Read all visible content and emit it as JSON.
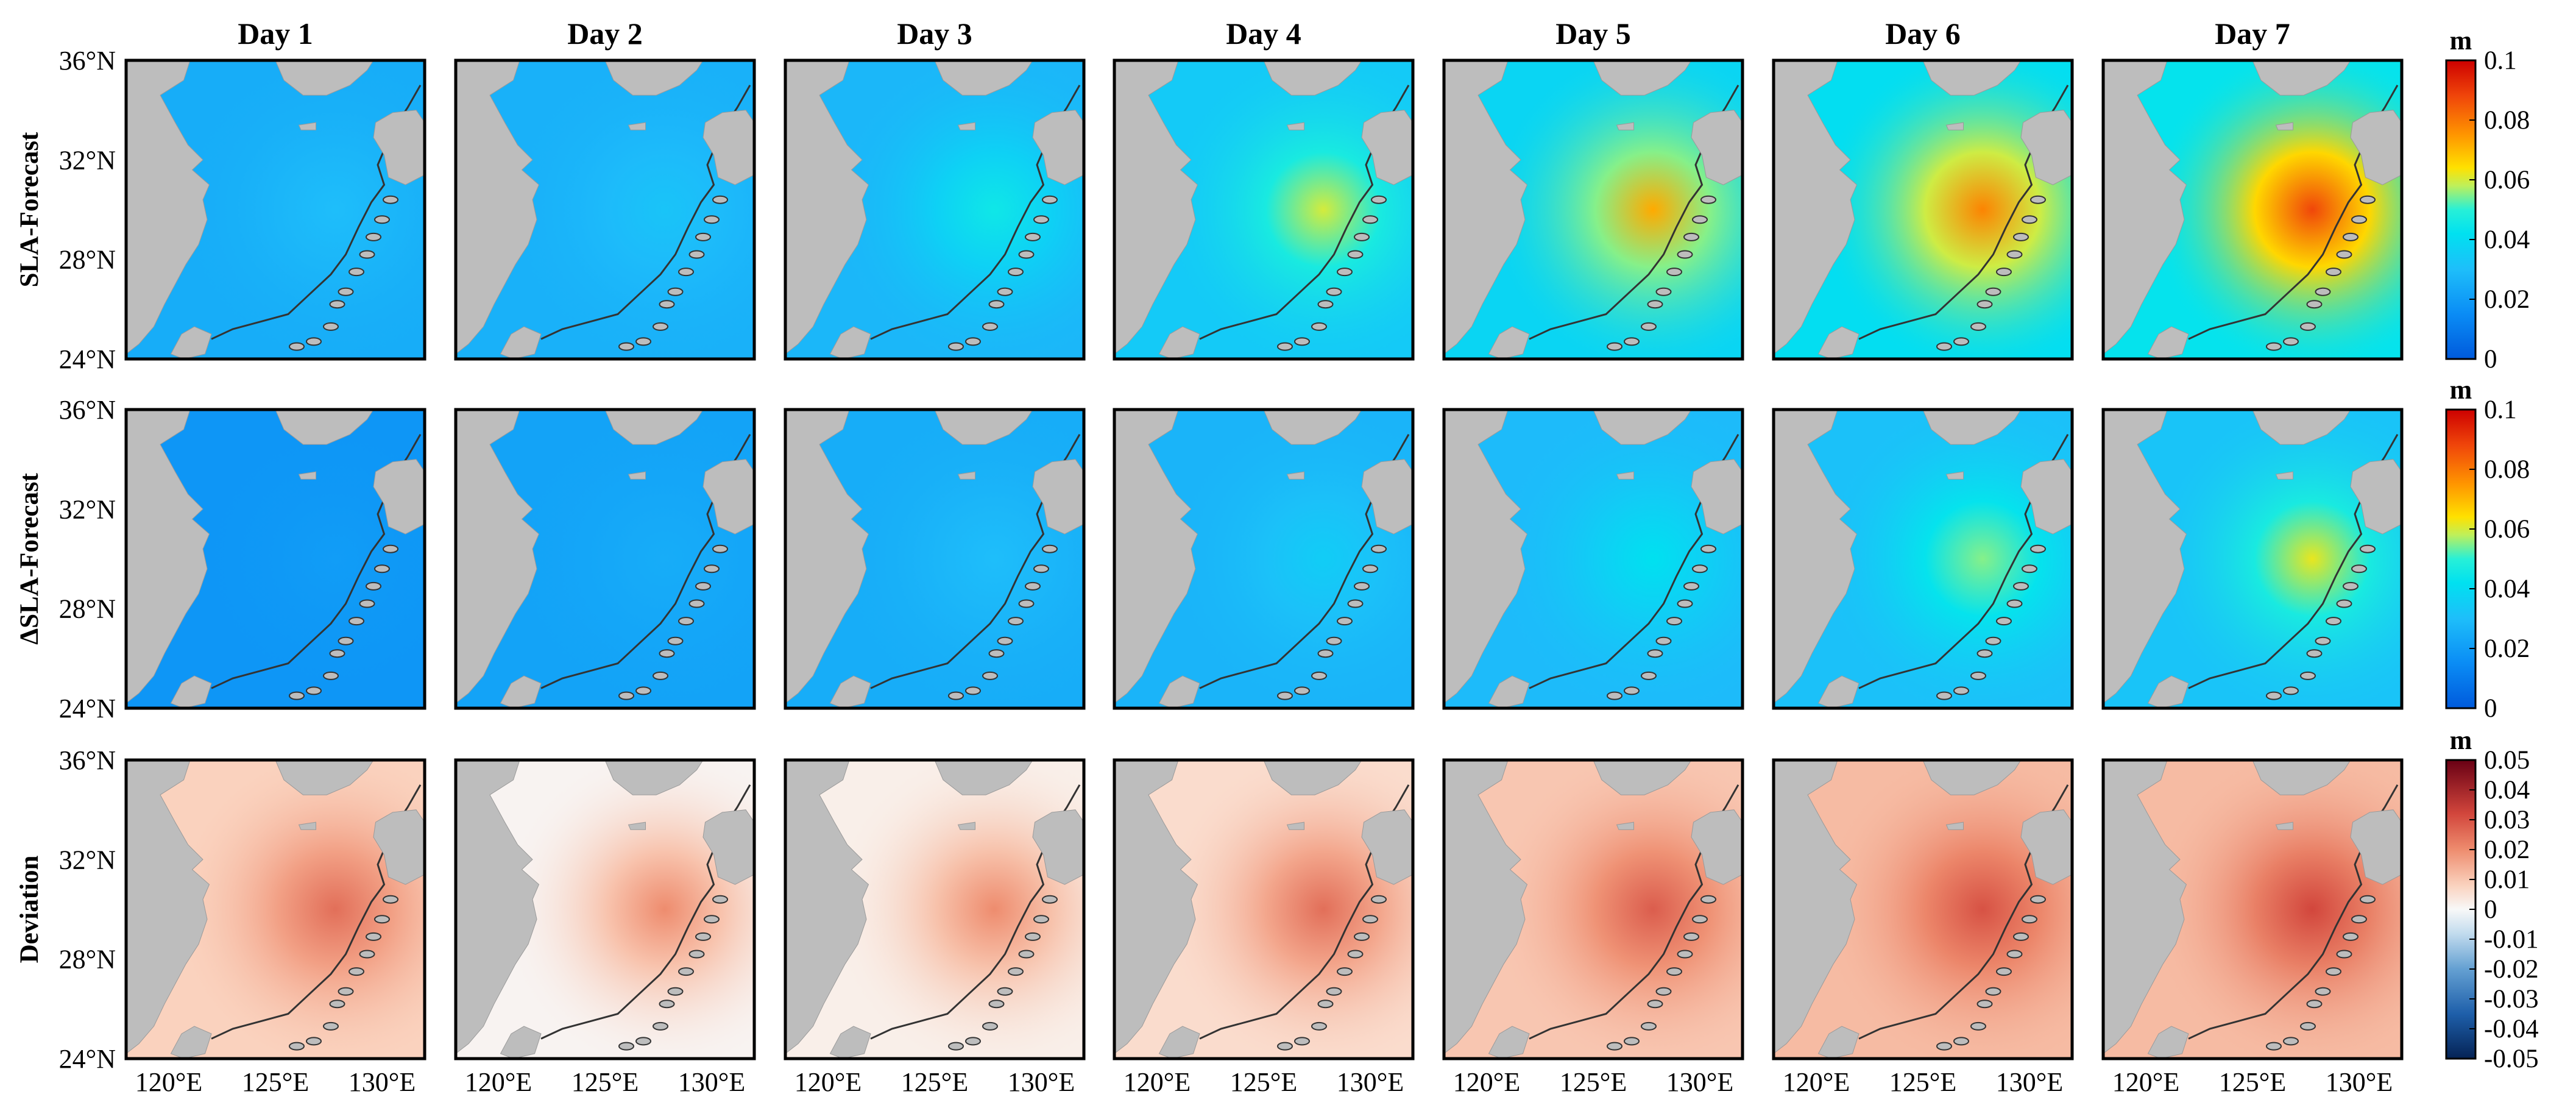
{
  "chart_data": {
    "type": "heatmap",
    "description_style": "7x3 grid of map panels over the East China Sea region",
    "columns": [
      "Day 1",
      "Day 2",
      "Day 3",
      "Day 4",
      "Day 5",
      "Day 6",
      "Day 7"
    ],
    "rows": [
      {
        "label": "SLA-Forecast",
        "colorbar": {
          "unit": "m",
          "range": [
            0,
            0.1
          ],
          "ticks": [
            "0",
            "0.02",
            "0.04",
            "0.06",
            "0.08",
            "0.1"
          ],
          "colormap": "jet"
        },
        "panels": [
          {
            "day": "Day 1",
            "background_value": 0.025,
            "hotspot_value": 0.03
          },
          {
            "day": "Day 2",
            "background_value": 0.026,
            "hotspot_value": 0.032
          },
          {
            "day": "Day 3",
            "background_value": 0.028,
            "hotspot_value": 0.045
          },
          {
            "day": "Day 4",
            "background_value": 0.034,
            "hotspot_value": 0.06
          },
          {
            "day": "Day 5",
            "background_value": 0.038,
            "hotspot_value": 0.072
          },
          {
            "day": "Day 6",
            "background_value": 0.041,
            "hotspot_value": 0.078
          },
          {
            "day": "Day 7",
            "background_value": 0.043,
            "hotspot_value": 0.088
          }
        ]
      },
      {
        "label": "ΔSLA-Forecast",
        "colorbar": {
          "unit": "m",
          "range": [
            0,
            0.1
          ],
          "ticks": [
            "0",
            "0.02",
            "0.04",
            "0.06",
            "0.08",
            "0.1"
          ],
          "colormap": "jet"
        },
        "panels": [
          {
            "day": "Day 1",
            "background_value": 0.018,
            "hotspot_value": 0.02
          },
          {
            "day": "Day 2",
            "background_value": 0.022,
            "hotspot_value": 0.025
          },
          {
            "day": "Day 3",
            "background_value": 0.025,
            "hotspot_value": 0.03
          },
          {
            "day": "Day 4",
            "background_value": 0.027,
            "hotspot_value": 0.035
          },
          {
            "day": "Day 5",
            "background_value": 0.029,
            "hotspot_value": 0.042
          },
          {
            "day": "Day 6",
            "background_value": 0.031,
            "hotspot_value": 0.055
          },
          {
            "day": "Day 7",
            "background_value": 0.032,
            "hotspot_value": 0.062
          }
        ]
      },
      {
        "label": "Deviation",
        "colorbar": {
          "unit": "m",
          "range": [
            -0.05,
            0.05
          ],
          "ticks": [
            "-0.05",
            "-0.04",
            "-0.03",
            "-0.02",
            "-0.01",
            "0",
            "0.01",
            "0.02",
            "0.03",
            "0.04",
            "0.05"
          ],
          "colormap": "diverging blue-white-red"
        },
        "panels": [
          {
            "day": "Day 1",
            "background_value": 0.008,
            "hotspot_value": 0.025
          },
          {
            "day": "Day 2",
            "background_value": 0.001,
            "hotspot_value": 0.02
          },
          {
            "day": "Day 3",
            "background_value": 0.002,
            "hotspot_value": 0.02
          },
          {
            "day": "Day 4",
            "background_value": 0.006,
            "hotspot_value": 0.025
          },
          {
            "day": "Day 5",
            "background_value": 0.01,
            "hotspot_value": 0.028
          },
          {
            "day": "Day 6",
            "background_value": 0.012,
            "hotspot_value": 0.03
          },
          {
            "day": "Day 7",
            "background_value": 0.012,
            "hotspot_value": 0.032
          }
        ]
      }
    ],
    "xaxis": {
      "ticks": [
        "120°E",
        "125°E",
        "130°E"
      ],
      "range": [
        118,
        132
      ]
    },
    "yaxis": {
      "ticks": [
        "36°N",
        "32°N",
        "28°N",
        "24°N"
      ],
      "range": [
        24,
        36
      ]
    },
    "land_color": "#bdbdbd",
    "contour_color": "#333333"
  }
}
